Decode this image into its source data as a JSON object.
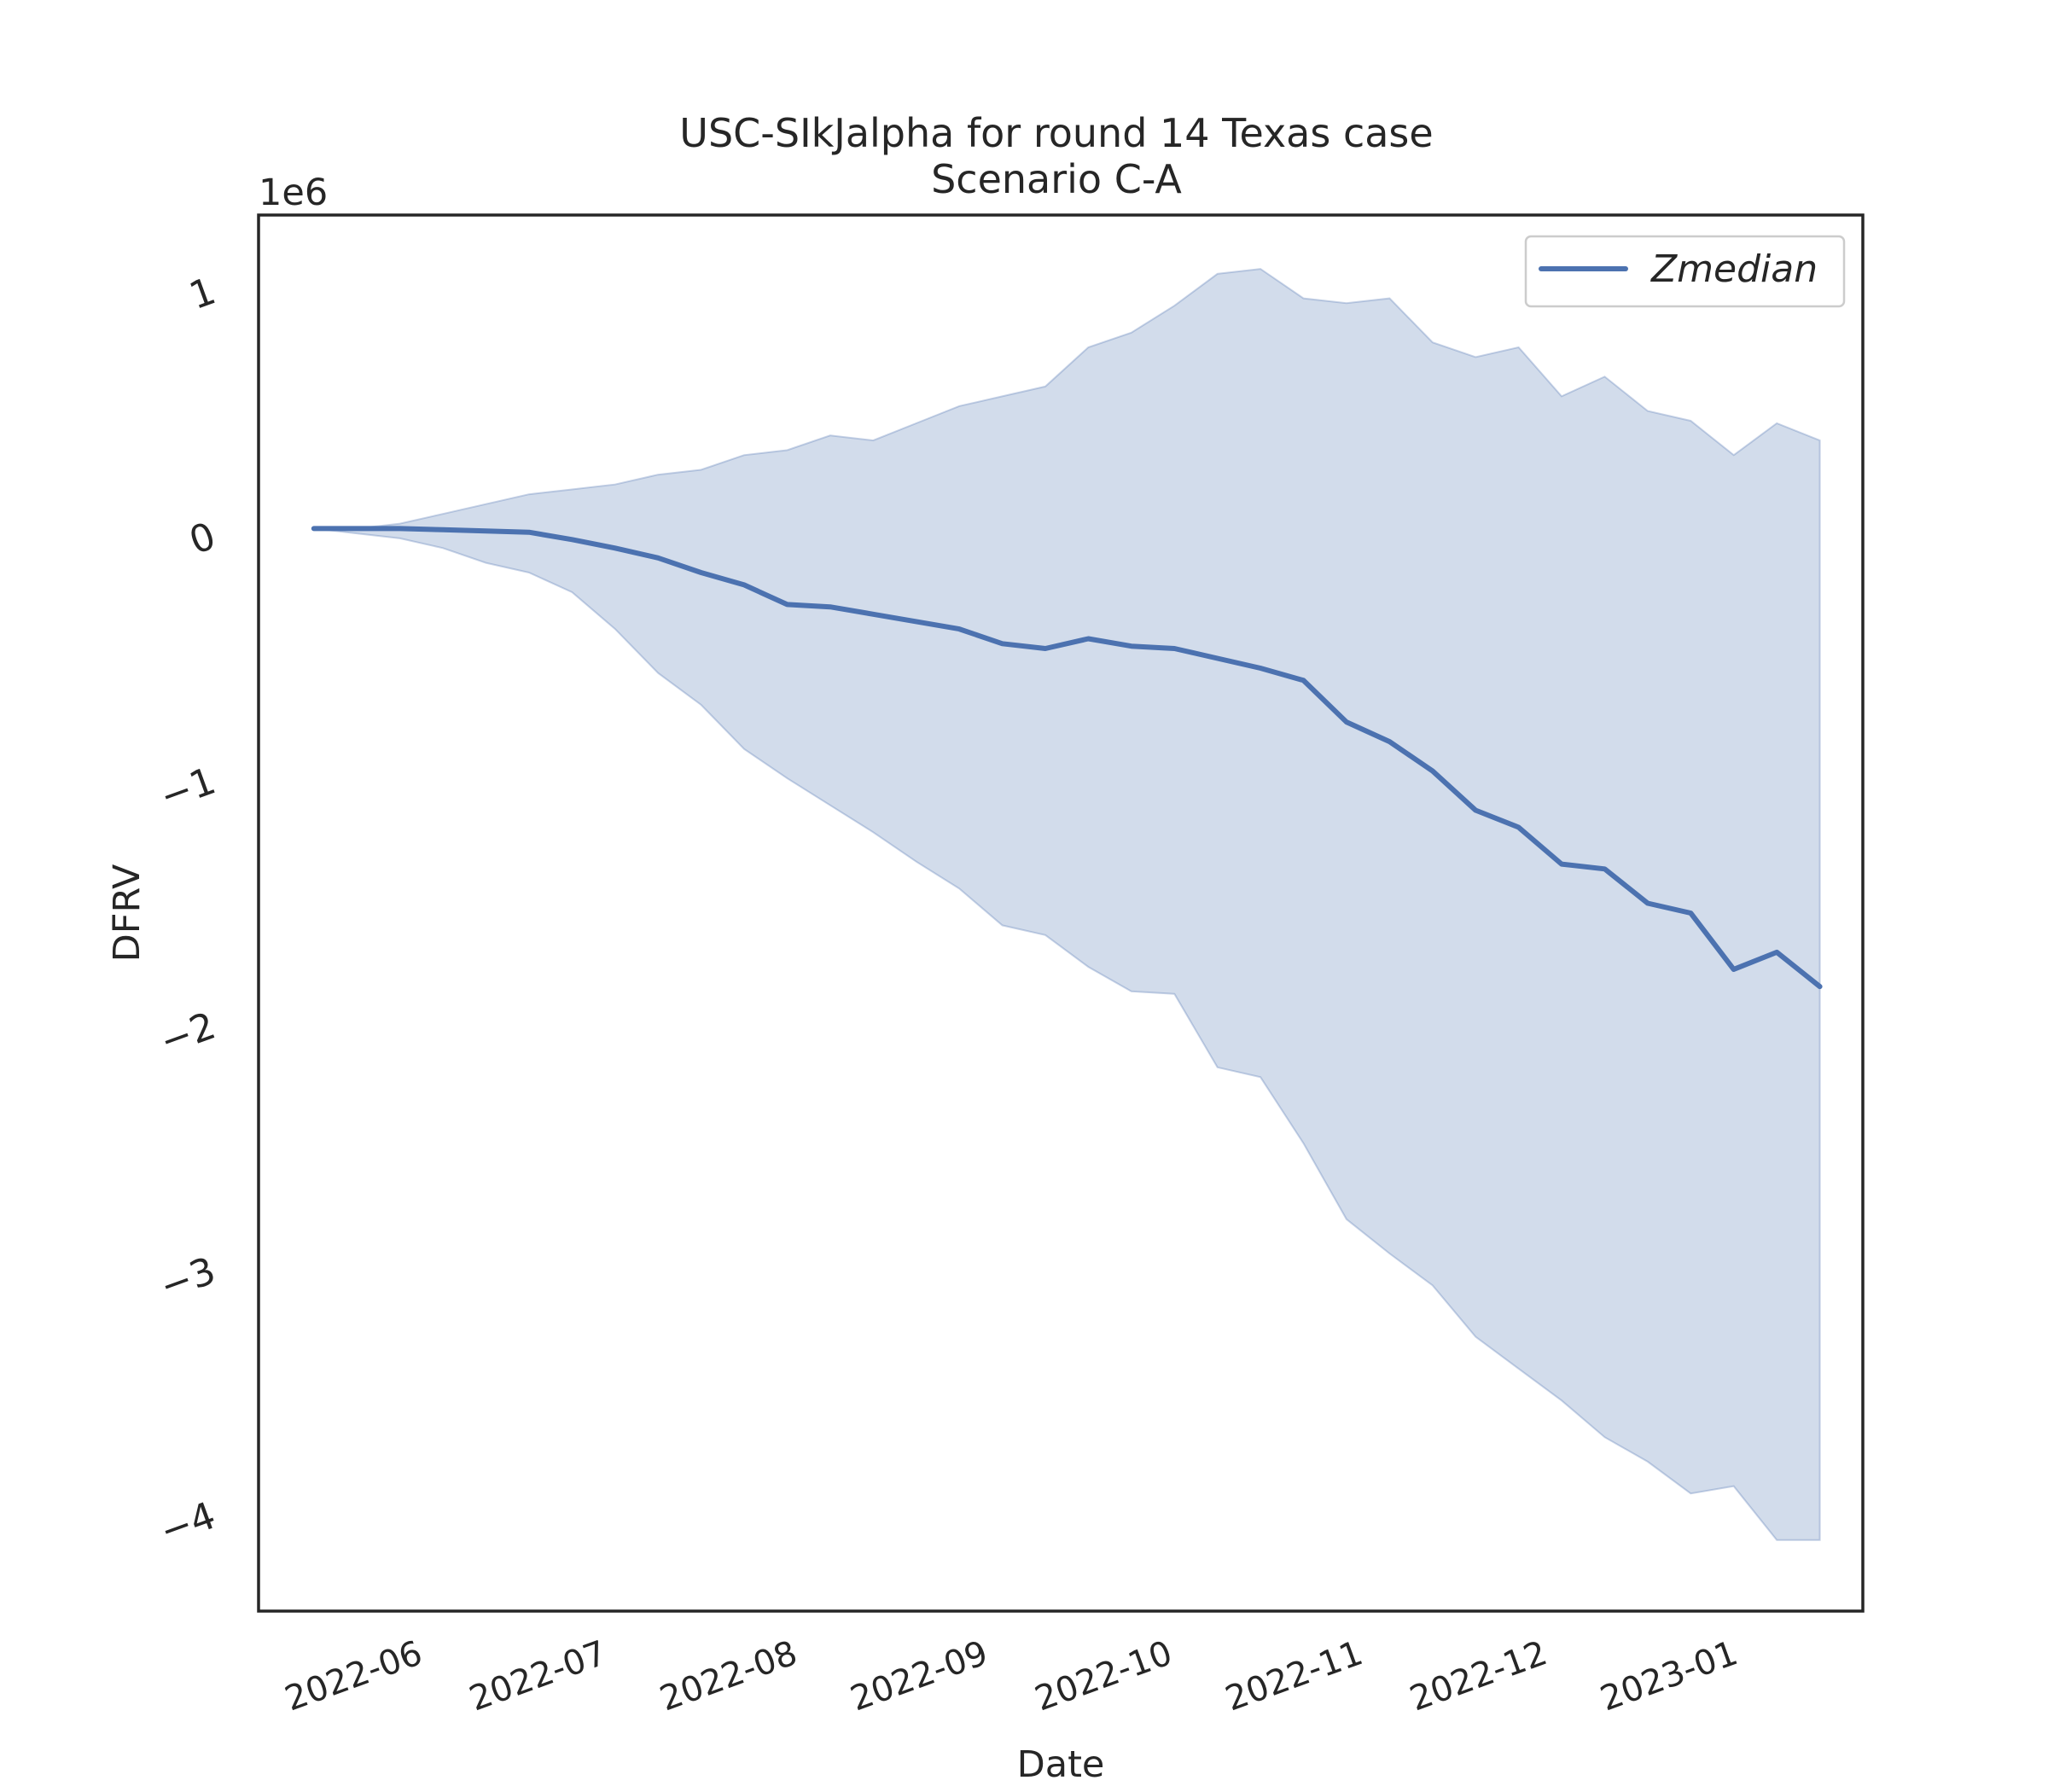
{
  "chart_data": {
    "type": "line",
    "title": "USC-SIkJalpha for round 14 Texas case",
    "subtitle": "Scenario C-A",
    "xlabel": "Date",
    "ylabel": "DFRV",
    "y_offset_label": "1e6",
    "y_scale": 1000000,
    "ylim": [
      -4.4,
      1.3
    ],
    "xlim": [
      "2022-05-05",
      "2023-01-21"
    ],
    "grid": false,
    "legend_position": "top-right",
    "x_tick_labels": [
      "2022-06",
      "2022-07",
      "2022-08",
      "2022-09",
      "2022-10",
      "2022-11",
      "2022-12",
      "2023-01"
    ],
    "y_tick_labels": [
      "−4",
      "−3",
      "−2",
      "−1",
      "0",
      "1"
    ],
    "y_tick_values": [
      -4,
      -3,
      -2,
      -1,
      0,
      1
    ],
    "colors": {
      "line": "#4c72b0",
      "band_fill": "#4c72b0",
      "band_opacity": 0.25,
      "axes": "#262626"
    },
    "x": [
      "2022-05-14",
      "2022-05-21",
      "2022-05-28",
      "2022-06-04",
      "2022-06-11",
      "2022-06-18",
      "2022-06-25",
      "2022-07-02",
      "2022-07-09",
      "2022-07-16",
      "2022-07-23",
      "2022-07-30",
      "2022-08-06",
      "2022-08-13",
      "2022-08-20",
      "2022-08-27",
      "2022-09-03",
      "2022-09-10",
      "2022-09-17",
      "2022-09-24",
      "2022-10-01",
      "2022-10-08",
      "2022-10-15",
      "2022-10-22",
      "2022-10-29",
      "2022-11-05",
      "2022-11-12",
      "2022-11-19",
      "2022-11-26",
      "2022-12-03",
      "2022-12-10",
      "2022-12-17",
      "2022-12-24",
      "2022-12-31",
      "2023-01-07",
      "2023-01-14"
    ],
    "series": [
      {
        "name": "Zmedian",
        "values": [
          0.02,
          0.02,
          0.02,
          0.015,
          0.01,
          0.005,
          -0.025,
          -0.06,
          -0.1,
          -0.16,
          -0.21,
          -0.29,
          -0.3,
          -0.33,
          -0.36,
          -0.39,
          -0.45,
          -0.47,
          -0.43,
          -0.46,
          -0.47,
          -0.51,
          -0.55,
          -0.6,
          -0.77,
          -0.85,
          -0.97,
          -1.13,
          -1.2,
          -1.35,
          -1.37,
          -1.51,
          -1.55,
          -1.78,
          -1.71,
          -1.85
        ]
      }
    ],
    "band": {
      "upper": [
        0.02,
        0.02,
        0.04,
        0.08,
        0.12,
        0.16,
        0.18,
        0.2,
        0.24,
        0.26,
        0.32,
        0.34,
        0.4,
        0.38,
        0.45,
        0.52,
        0.56,
        0.6,
        0.76,
        0.82,
        0.93,
        1.06,
        1.08,
        0.96,
        0.94,
        0.96,
        0.78,
        0.72,
        0.76,
        0.56,
        0.64,
        0.5,
        0.46,
        0.32,
        0.45,
        0.38
      ],
      "lower": [
        0.02,
        0.0,
        -0.02,
        -0.06,
        -0.12,
        -0.16,
        -0.24,
        -0.39,
        -0.57,
        -0.7,
        -0.88,
        -1.0,
        -1.11,
        -1.22,
        -1.34,
        -1.45,
        -1.6,
        -1.64,
        -1.77,
        -1.87,
        -1.88,
        -2.18,
        -2.22,
        -2.49,
        -2.8,
        -2.94,
        -3.07,
        -3.28,
        -3.41,
        -3.54,
        -3.69,
        -3.79,
        -3.92,
        -3.89,
        -4.11,
        -4.11
      ]
    }
  }
}
